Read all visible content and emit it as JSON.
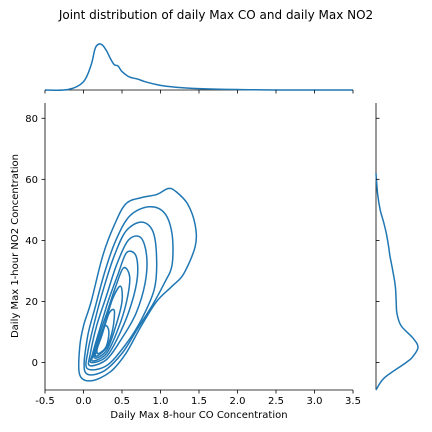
{
  "chart_data": {
    "type": "kde-joint",
    "title": "Joint distribution of daily Max CO and daily Max NO2",
    "xlabel": "Daily Max 8-hour CO Concentration",
    "ylabel": "Daily Max 1-hour NO2 Concentration",
    "xlim": [
      -0.5,
      3.5
    ],
    "ylim": [
      -9,
      85
    ],
    "xticks": [
      "-0.5",
      "0.0",
      "0.5",
      "1.0",
      "1.5",
      "2.0",
      "2.5",
      "3.0",
      "3.5"
    ],
    "yticks": [
      "0",
      "20",
      "40",
      "60",
      "80"
    ],
    "grid": false,
    "color": "#1f77b4",
    "joint_contours": [
      [
        [
          -0.05,
          -4
        ],
        [
          0.1,
          -6
        ],
        [
          0.35,
          -3
        ],
        [
          0.55,
          3
        ],
        [
          0.75,
          12
        ],
        [
          0.95,
          20
        ],
        [
          1.15,
          25
        ],
        [
          1.3,
          29
        ],
        [
          1.45,
          38
        ],
        [
          1.45,
          45
        ],
        [
          1.35,
          52
        ],
        [
          1.2,
          56
        ],
        [
          1.1,
          57
        ],
        [
          0.95,
          55
        ],
        [
          0.75,
          54
        ],
        [
          0.55,
          52
        ],
        [
          0.4,
          45
        ],
        [
          0.25,
          35
        ],
        [
          0.1,
          20
        ],
        [
          0.0,
          12
        ],
        [
          -0.05,
          5
        ]
      ],
      [
        [
          0.02,
          -3
        ],
        [
          0.25,
          -3
        ],
        [
          0.5,
          3
        ],
        [
          0.7,
          11
        ],
        [
          0.9,
          19
        ],
        [
          1.05,
          26
        ],
        [
          1.15,
          32
        ],
        [
          1.15,
          42
        ],
        [
          1.05,
          49
        ],
        [
          0.85,
          51
        ],
        [
          0.6,
          48
        ],
        [
          0.42,
          40
        ],
        [
          0.28,
          30
        ],
        [
          0.15,
          18
        ],
        [
          0.05,
          8
        ]
      ],
      [
        [
          0.05,
          -2
        ],
        [
          0.3,
          -1
        ],
        [
          0.55,
          6
        ],
        [
          0.75,
          14
        ],
        [
          0.92,
          24
        ],
        [
          0.95,
          34
        ],
        [
          0.9,
          43
        ],
        [
          0.75,
          46
        ],
        [
          0.55,
          43
        ],
        [
          0.4,
          35
        ],
        [
          0.27,
          25
        ],
        [
          0.15,
          14
        ],
        [
          0.06,
          4
        ]
      ],
      [
        [
          0.08,
          -1
        ],
        [
          0.3,
          1
        ],
        [
          0.5,
          8
        ],
        [
          0.68,
          16
        ],
        [
          0.8,
          26
        ],
        [
          0.82,
          35
        ],
        [
          0.74,
          41
        ],
        [
          0.58,
          40
        ],
        [
          0.43,
          32
        ],
        [
          0.3,
          22
        ],
        [
          0.17,
          12
        ],
        [
          0.09,
          3
        ]
      ],
      [
        [
          0.1,
          0
        ],
        [
          0.3,
          2
        ],
        [
          0.48,
          10
        ],
        [
          0.62,
          19
        ],
        [
          0.7,
          28
        ],
        [
          0.68,
          35
        ],
        [
          0.56,
          36
        ],
        [
          0.45,
          29
        ],
        [
          0.32,
          20
        ],
        [
          0.2,
          10
        ],
        [
          0.12,
          3
        ]
      ],
      [
        [
          0.12,
          0.5
        ],
        [
          0.3,
          3
        ],
        [
          0.45,
          11
        ],
        [
          0.56,
          20
        ],
        [
          0.6,
          28
        ],
        [
          0.52,
          31
        ],
        [
          0.42,
          25
        ],
        [
          0.3,
          16
        ],
        [
          0.19,
          8
        ],
        [
          0.13,
          3
        ]
      ],
      [
        [
          0.14,
          1.5
        ],
        [
          0.3,
          4
        ],
        [
          0.42,
          12
        ],
        [
          0.5,
          20
        ],
        [
          0.48,
          25
        ],
        [
          0.38,
          21
        ],
        [
          0.28,
          13
        ],
        [
          0.18,
          6
        ]
      ],
      [
        [
          0.16,
          2
        ],
        [
          0.3,
          5
        ],
        [
          0.38,
          11
        ],
        [
          0.4,
          17
        ],
        [
          0.33,
          16
        ],
        [
          0.24,
          9
        ],
        [
          0.17,
          4
        ]
      ],
      [
        [
          0.18,
          3
        ],
        [
          0.29,
          5
        ],
        [
          0.33,
          10
        ],
        [
          0.28,
          12
        ],
        [
          0.2,
          7
        ]
      ]
    ],
    "marginal_x": {
      "x": [
        -0.5,
        -0.2,
        0.0,
        0.1,
        0.15,
        0.2,
        0.25,
        0.3,
        0.35,
        0.4,
        0.45,
        0.5,
        0.6,
        0.7,
        0.8,
        1.0,
        1.2,
        1.5,
        2.0,
        2.5,
        3.0,
        3.5
      ],
      "density": [
        0.0,
        0.01,
        0.18,
        0.55,
        0.9,
        1.0,
        0.97,
        0.85,
        0.68,
        0.55,
        0.52,
        0.4,
        0.28,
        0.24,
        0.18,
        0.1,
        0.06,
        0.03,
        0.01,
        0.0,
        0.0,
        0.0
      ]
    },
    "marginal_y": {
      "y": [
        -9,
        -5,
        0,
        2,
        5,
        8,
        12,
        16,
        20,
        25,
        30,
        35,
        38,
        42,
        46,
        50,
        55,
        60,
        62
      ],
      "density": [
        0.0,
        0.2,
        0.72,
        0.88,
        1.0,
        0.88,
        0.6,
        0.5,
        0.48,
        0.46,
        0.4,
        0.33,
        0.3,
        0.25,
        0.18,
        0.1,
        0.04,
        0.01,
        0.0
      ]
    }
  }
}
